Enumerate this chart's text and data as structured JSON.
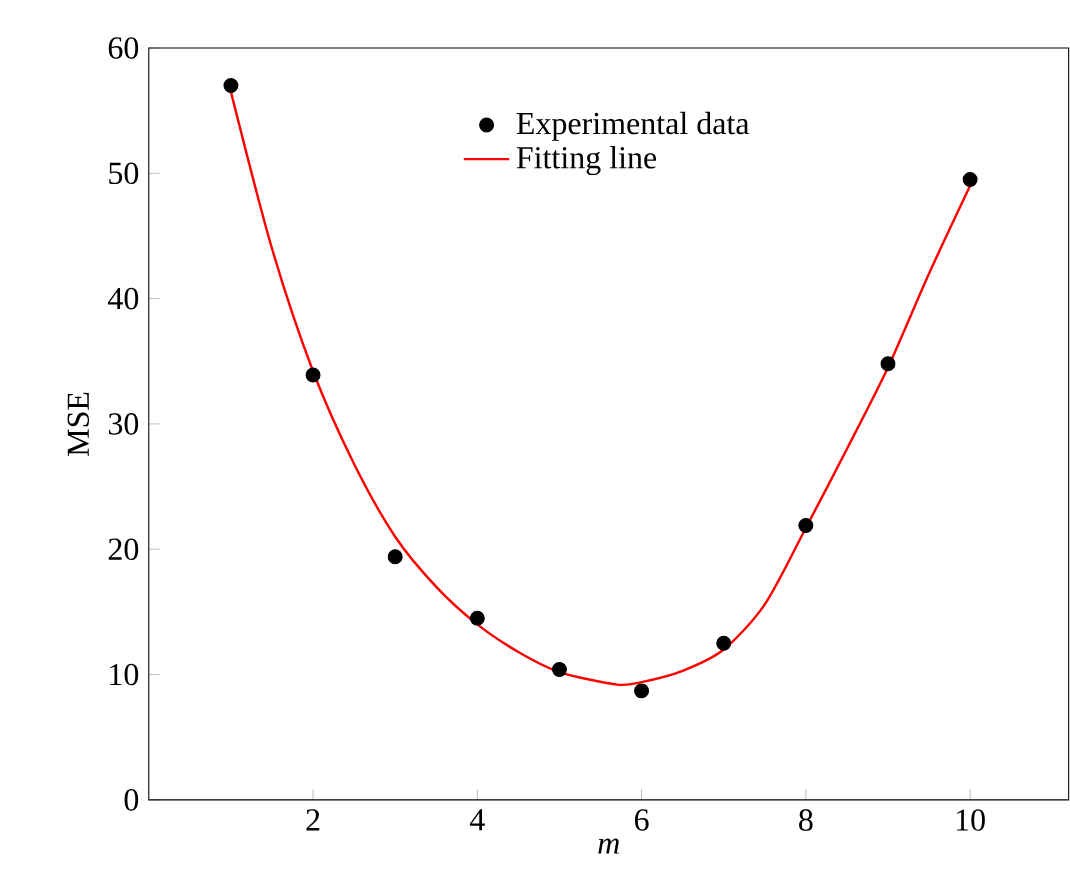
{
  "chart_data": {
    "type": "scatter",
    "xlabel": "*m*",
    "ylabel": "MSE",
    "xlim": [
      0,
      11.2
    ],
    "ylim": [
      0,
      60
    ],
    "xticks": [
      2,
      4,
      6,
      8,
      10
    ],
    "yticks": [
      0,
      10,
      20,
      30,
      40,
      50,
      60
    ],
    "grid": false,
    "legend": "top",
    "series": [
      {
        "name": "Experimental data",
        "marker": "circle",
        "color": "#000000",
        "x": [
          1,
          2,
          3,
          4,
          5,
          6,
          7,
          8,
          9,
          10
        ],
        "values": [
          57.0,
          33.9,
          19.4,
          14.5,
          10.4,
          8.7,
          12.5,
          21.9,
          34.8,
          49.5
        ]
      },
      {
        "name": "Fitting line",
        "type": "line",
        "marker": "none",
        "line_style": "solid",
        "color": "#ff0000",
        "x": [
          1,
          1.5,
          2,
          2.5,
          3,
          3.5,
          4,
          4.5,
          5,
          5.7,
          6,
          6.5,
          7,
          7.5,
          8,
          8.5,
          9,
          9.5,
          10
        ],
        "values": [
          56.5,
          44,
          34.2,
          26.8,
          21.0,
          17.0,
          14.0,
          11.8,
          10.2,
          9.2,
          9.4,
          10.3,
          12.0,
          15.6,
          21.7,
          28,
          34.5,
          42,
          49
        ]
      }
    ]
  }
}
